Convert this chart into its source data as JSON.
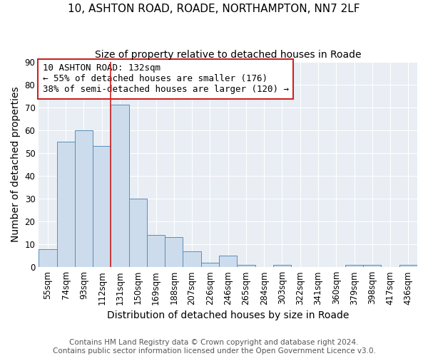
{
  "title1": "10, ASHTON ROAD, ROADE, NORTHAMPTON, NN7 2LF",
  "title2": "Size of property relative to detached houses in Roade",
  "xlabel": "Distribution of detached houses by size in Roade",
  "ylabel": "Number of detached properties",
  "footer1": "Contains HM Land Registry data © Crown copyright and database right 2024.",
  "footer2": "Contains public sector information licensed under the Open Government Licence v3.0.",
  "annotation_line1": "10 ASHTON ROAD: 132sqm",
  "annotation_line2": "← 55% of detached houses are smaller (176)",
  "annotation_line3": "38% of semi-detached houses are larger (120) →",
  "bar_values": [
    8,
    55,
    60,
    53,
    71,
    30,
    14,
    13,
    7,
    2,
    5,
    1,
    0,
    1,
    0,
    0,
    0,
    1,
    1,
    0,
    1
  ],
  "bar_labels": [
    "55sqm",
    "74sqm",
    "93sqm",
    "112sqm",
    "131sqm",
    "150sqm",
    "169sqm",
    "188sqm",
    "207sqm",
    "226sqm",
    "246sqm",
    "265sqm",
    "284sqm",
    "303sqm",
    "322sqm",
    "341sqm",
    "360sqm",
    "379sqm",
    "398sqm",
    "417sqm",
    "436sqm"
  ],
  "bar_color": "#ccdcec",
  "bar_edge_color": "#5b8db8",
  "vline_index": 4,
  "vline_color": "#cc2222",
  "annotation_box_edgecolor": "#cc2222",
  "ylim": [
    0,
    90
  ],
  "yticks": [
    0,
    10,
    20,
    30,
    40,
    50,
    60,
    70,
    80,
    90
  ],
  "bg_color": "#e8eef4",
  "grid_color": "#ffffff",
  "title_fontsize": 11,
  "subtitle_fontsize": 10,
  "axis_label_fontsize": 10,
  "tick_fontsize": 8.5,
  "footer_fontsize": 7.5,
  "annotation_fontsize": 9
}
